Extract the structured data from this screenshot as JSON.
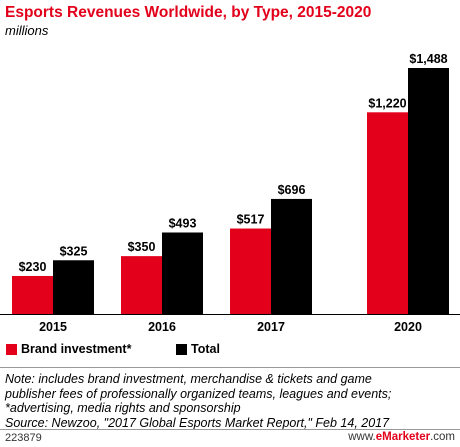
{
  "title": "Esports Revenues Worldwide, by Type, 2015-2020",
  "subtitle": "millions",
  "legend": {
    "brand": "Brand investment*",
    "total": "Total"
  },
  "notes": [
    "Note: includes brand investment, merchandise & tickets and game",
    "publisher fees of professionally organized teams, leagues and events;",
    "*advertising, media rights and sponsorship",
    "Source: Newzoo, \"2017 Global Esports Market Report,\" Feb 14, 2017"
  ],
  "footer": {
    "id": "223879",
    "brand_prefix": "www.",
    "brand_name": "eMarketer",
    "brand_suffix": ".com"
  },
  "colors": {
    "brand": "#e3001b",
    "total": "#000000",
    "title": "#e3001b"
  },
  "chart_data": {
    "type": "bar",
    "categories": [
      "2015",
      "2016",
      "2017",
      "2020"
    ],
    "series": [
      {
        "name": "Brand investment*",
        "values": [
          230,
          350,
          517,
          1220
        ],
        "labels": [
          "$230",
          "$350",
          "$517",
          "$1,220"
        ]
      },
      {
        "name": "Total",
        "values": [
          325,
          493,
          696,
          1488
        ],
        "labels": [
          "$325",
          "$493",
          "$696",
          "$1,488"
        ]
      }
    ],
    "title": "Esports Revenues Worldwide, by Type, 2015-2020",
    "ylabel": "millions",
    "grid": false,
    "legend_position": "bottom-left"
  }
}
